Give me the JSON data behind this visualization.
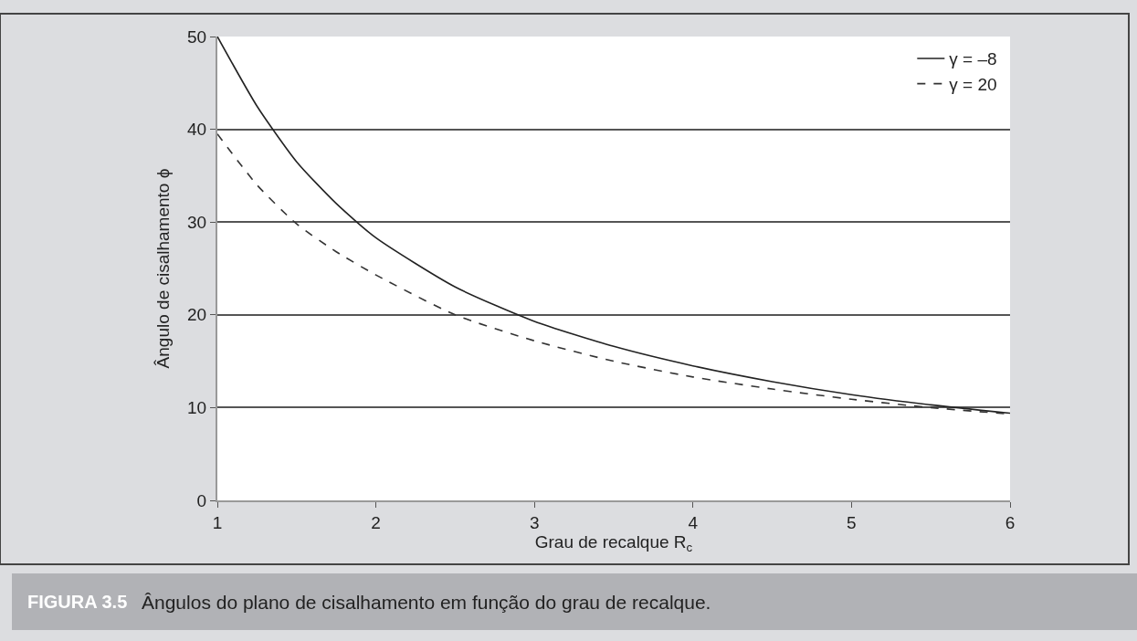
{
  "chart_data": {
    "type": "line",
    "xlabel": "Grau de recalque R$_{c}$",
    "ylabel": "Ângulo de cisalhamento ϕ",
    "x": [
      1,
      1.25,
      1.5,
      1.75,
      2,
      2.5,
      3,
      3.5,
      4,
      4.5,
      5,
      5.5,
      6
    ],
    "series": [
      {
        "name": "γ = –8",
        "color": "#222222",
        "line_style": "solid",
        "values": [
          50,
          42.5,
          36.5,
          32,
          28.3,
          23,
          19.3,
          16.6,
          14.5,
          12.8,
          11.4,
          10.3,
          9.4
        ]
      },
      {
        "name": "γ = 20",
        "color": "#333333",
        "line_style": "dashed",
        "values": [
          39.5,
          34,
          29.8,
          26.8,
          24.3,
          20,
          17.2,
          15,
          13.3,
          12,
          10.9,
          10,
          9.3
        ]
      }
    ],
    "xlim": [
      1,
      6
    ],
    "xticks": [
      1,
      2,
      3,
      4,
      5,
      6
    ],
    "ylim": [
      0,
      50
    ],
    "yticks": [
      0,
      10,
      20,
      30,
      40,
      50
    ],
    "grid": "y",
    "legend": "top right",
    "marker": "none",
    "annotations": [
      "FIGURA 3.5",
      "Ângulos do plano de cisalhamento em função do grau de recalque."
    ]
  }
}
